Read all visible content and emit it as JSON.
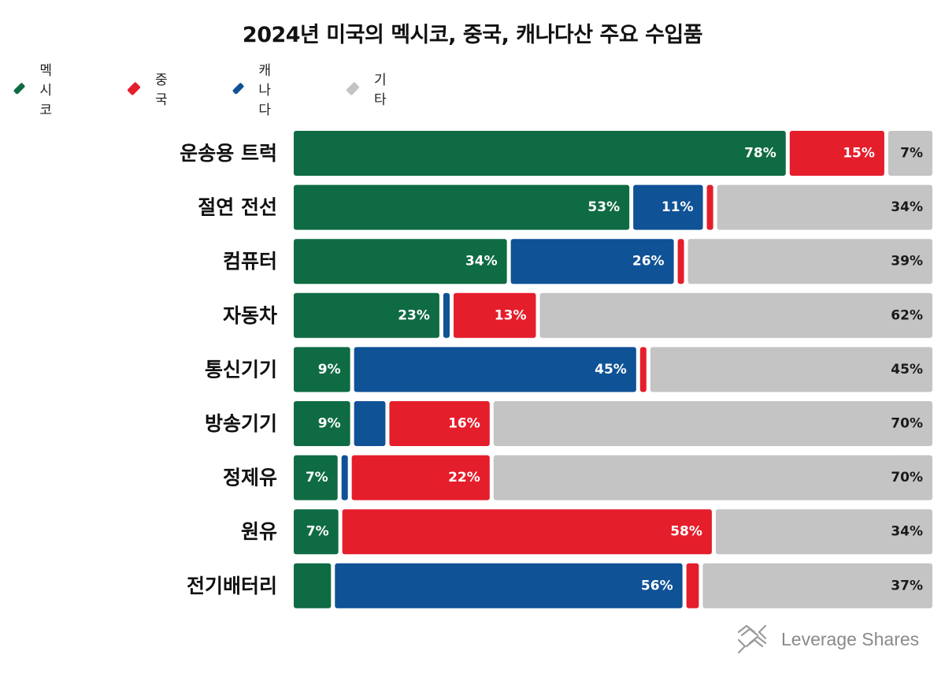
{
  "chart_data": {
    "type": "bar",
    "orientation": "horizontal",
    "stacked": true,
    "title": "2024년 미국의 멕시코, 중국, 캐나다산 주요 수입품",
    "categories": [
      "운송용 트럭",
      "절연 전선",
      "컴퓨터",
      "자동차",
      "통신기기",
      "방송기기",
      "정제유",
      "원유",
      "전기배터리"
    ],
    "series": [
      {
        "name": "멕시코",
        "color": "#0f6b43",
        "values": [
          78,
          53,
          34,
          23,
          9,
          9,
          7,
          7,
          6
        ]
      },
      {
        "name": "캐나다",
        "color": "#0f5296",
        "values": [
          0,
          11,
          26,
          1,
          45,
          5,
          1,
          0,
          56
        ]
      },
      {
        "name": "중국",
        "color": "#e51e2b",
        "values": [
          15,
          1,
          1,
          13,
          1,
          16,
          22,
          58,
          2
        ]
      },
      {
        "name": "기타",
        "color": "#c4c4c4",
        "values": [
          7,
          34,
          39,
          62,
          45,
          70,
          70,
          34,
          37
        ]
      }
    ],
    "segment_order": [
      [
        "멕시코",
        "중국",
        "기타"
      ],
      [
        "멕시코",
        "캐나다",
        "중국",
        "기타"
      ],
      [
        "멕시코",
        "캐나다",
        "중국",
        "기타"
      ],
      [
        "멕시코",
        "캐나다",
        "중국",
        "기타"
      ],
      [
        "멕시코",
        "캐나다",
        "중국",
        "기타"
      ],
      [
        "멕시코",
        "캐나다",
        "중국",
        "기타"
      ],
      [
        "멕시코",
        "캐나다",
        "중국",
        "기타"
      ],
      [
        "멕시코",
        "중국",
        "기타"
      ],
      [
        "멕시코",
        "캐나다",
        "중국",
        "기타"
      ]
    ],
    "value_labels": [
      [
        "78%",
        "15%",
        "7%"
      ],
      [
        "53%",
        "11%",
        "",
        "34%"
      ],
      [
        "34%",
        "26%",
        "",
        "39%"
      ],
      [
        "23%",
        "",
        "13%",
        "62%"
      ],
      [
        "9%",
        "45%",
        "",
        "45%"
      ],
      [
        "9%",
        "",
        "16%",
        "70%"
      ],
      [
        "7%",
        "",
        "22%",
        "70%"
      ],
      [
        "7%",
        "58%",
        "34%"
      ],
      [
        "",
        "56%",
        "",
        "37%"
      ]
    ],
    "legend": {
      "position": "top-left",
      "items": [
        {
          "label": "멕시코",
          "color": "#0f6b43"
        },
        {
          "label": "중국",
          "color": "#e51e2b"
        },
        {
          "label": "캐나다",
          "color": "#0f5296"
        },
        {
          "label": "기타",
          "color": "#c4c4c4"
        }
      ]
    },
    "grid": false
  },
  "brand": {
    "name": "Leverage Shares",
    "icon": "leverage-shares-logo-icon",
    "color": "#8a8a8a"
  }
}
